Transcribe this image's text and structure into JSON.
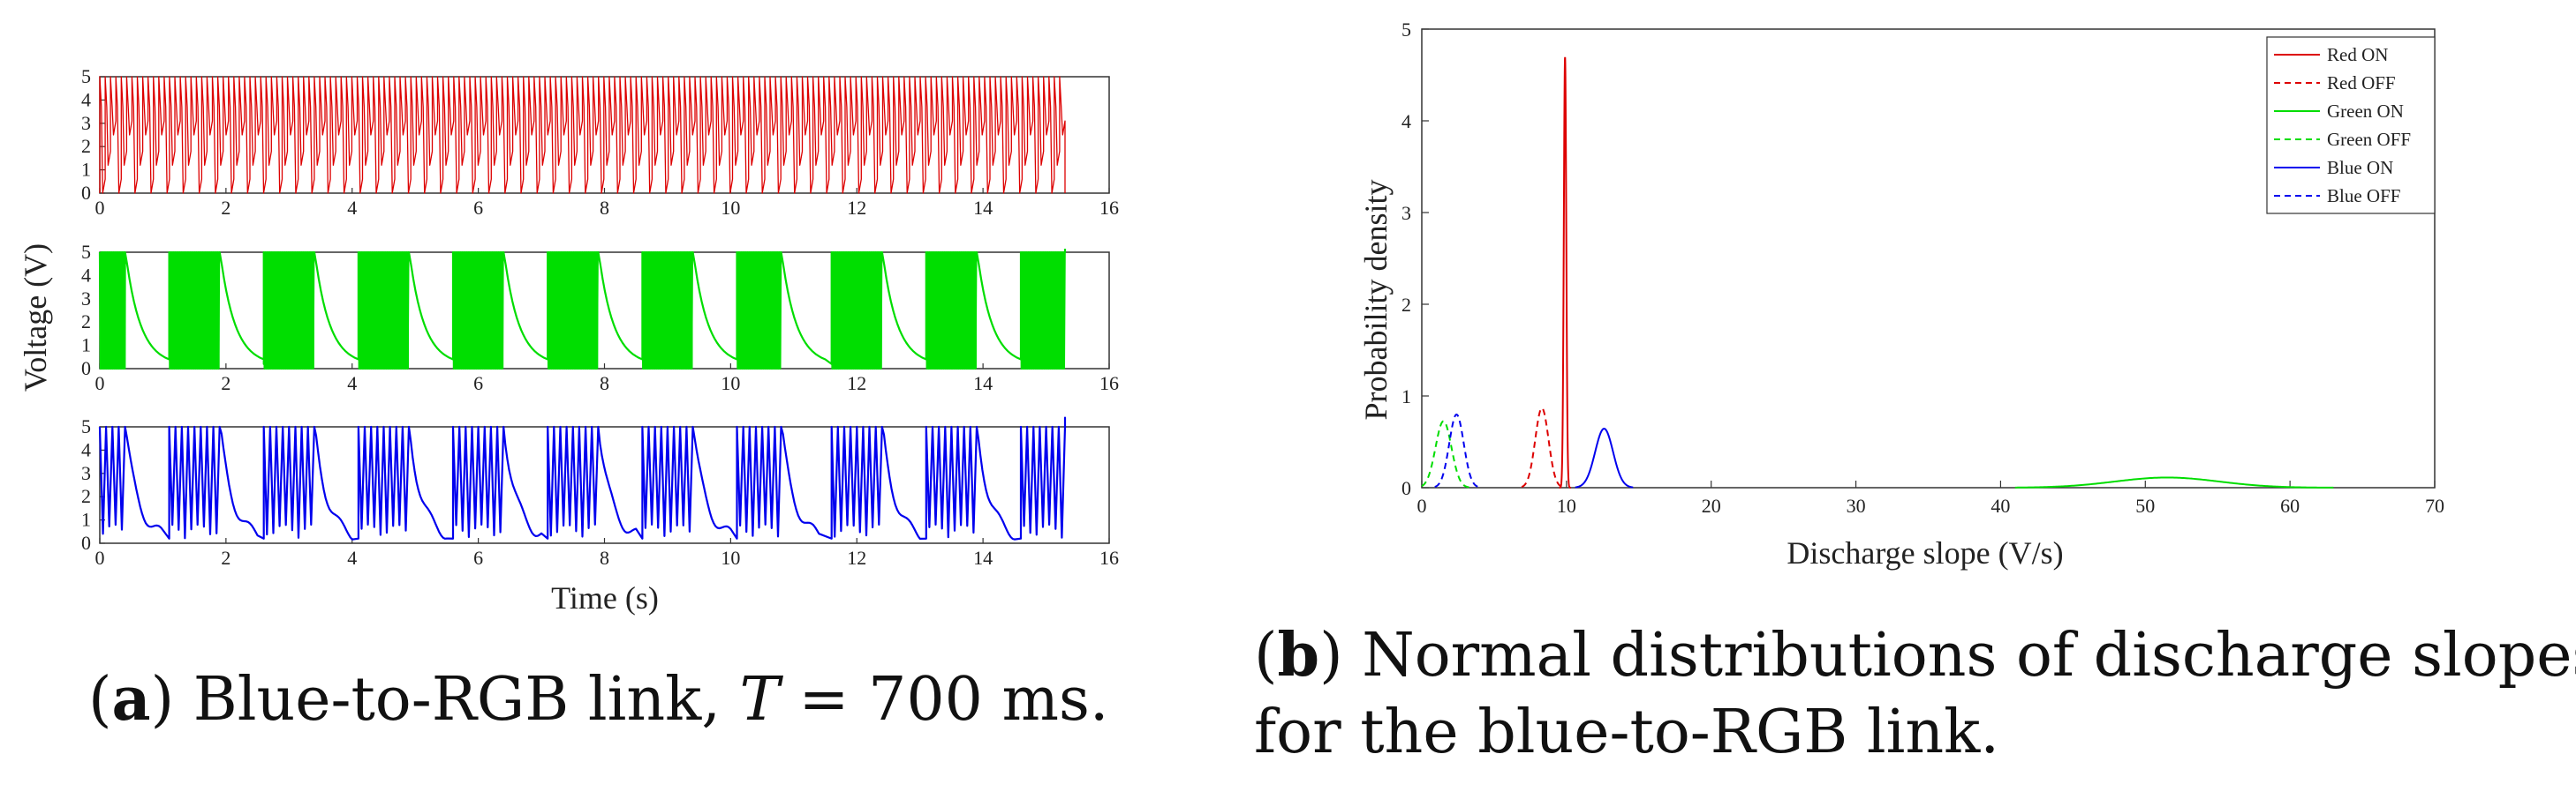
{
  "captions": {
    "a": {
      "label": "a",
      "text_before": " Blue-to-RGB link, ",
      "T": "T",
      "text_after": " = 700 ms."
    },
    "b": {
      "label": "b",
      "line1": " Normal distributions of discharge slopes",
      "line2": "for the blue-to-RGB link."
    }
  },
  "chart_data": [
    {
      "id": "a",
      "type": "line",
      "title": "",
      "xlabel": "Time (s)",
      "ylabel": "Voltage (V)",
      "xlim": [
        0,
        16
      ],
      "ylim": [
        0,
        5
      ],
      "x_ticks": [
        "0",
        "2",
        "4",
        "6",
        "8",
        "10",
        "12",
        "14",
        "16"
      ],
      "y_ticks": [
        "0",
        "1",
        "2",
        "3",
        "4",
        "5"
      ],
      "panels": [
        {
          "name": "Red",
          "color": "#dd0000",
          "pattern": "dense-oscillation",
          "t_end": 15.3,
          "v_min": 0,
          "v_max": 5
        },
        {
          "name": "Green",
          "color": "#00dd00",
          "pattern": "discharge-and-burst",
          "t_end": 15.3,
          "v_min": 0,
          "v_max": 5
        },
        {
          "name": "Blue",
          "color": "#0000ee",
          "pattern": "discharge-and-burst",
          "t_end": 15.3,
          "v_min": 0,
          "v_max": 5
        }
      ]
    },
    {
      "id": "b",
      "type": "line",
      "title": "",
      "xlabel": "Discharge slope (V/s)",
      "ylabel": "Probability density",
      "xlim": [
        0,
        70
      ],
      "ylim": [
        0,
        5
      ],
      "x_ticks": [
        "0",
        "10",
        "20",
        "30",
        "40",
        "50",
        "60",
        "70"
      ],
      "y_ticks": [
        "0",
        "1",
        "2",
        "3",
        "4",
        "5"
      ],
      "legend_position": "top-right",
      "series": [
        {
          "name": "Red ON",
          "color": "#dd0000",
          "dash": "solid",
          "mean": 9.9,
          "std": 0.085,
          "x_range": [
            9.5,
            10.3
          ]
        },
        {
          "name": "Red OFF",
          "color": "#dd0000",
          "dash": "dashed",
          "mean": 8.3,
          "std": 0.46,
          "x_range": [
            6.9,
            9.7
          ]
        },
        {
          "name": "Green ON",
          "color": "#00dd00",
          "dash": "solid",
          "mean": 51.5,
          "std": 3.6,
          "x_range": [
            41,
            63
          ]
        },
        {
          "name": "Green OFF",
          "color": "#00dd00",
          "dash": "dashed",
          "mean": 1.5,
          "std": 0.55,
          "x_range": [
            0,
            3.4
          ]
        },
        {
          "name": "Blue ON",
          "color": "#0000ee",
          "dash": "solid",
          "mean": 12.6,
          "std": 0.62,
          "x_range": [
            10.6,
            14.6
          ]
        },
        {
          "name": "Blue OFF",
          "color": "#0000ee",
          "dash": "dashed",
          "mean": 2.4,
          "std": 0.5,
          "x_range": [
            0.9,
            4.0
          ]
        }
      ]
    }
  ]
}
